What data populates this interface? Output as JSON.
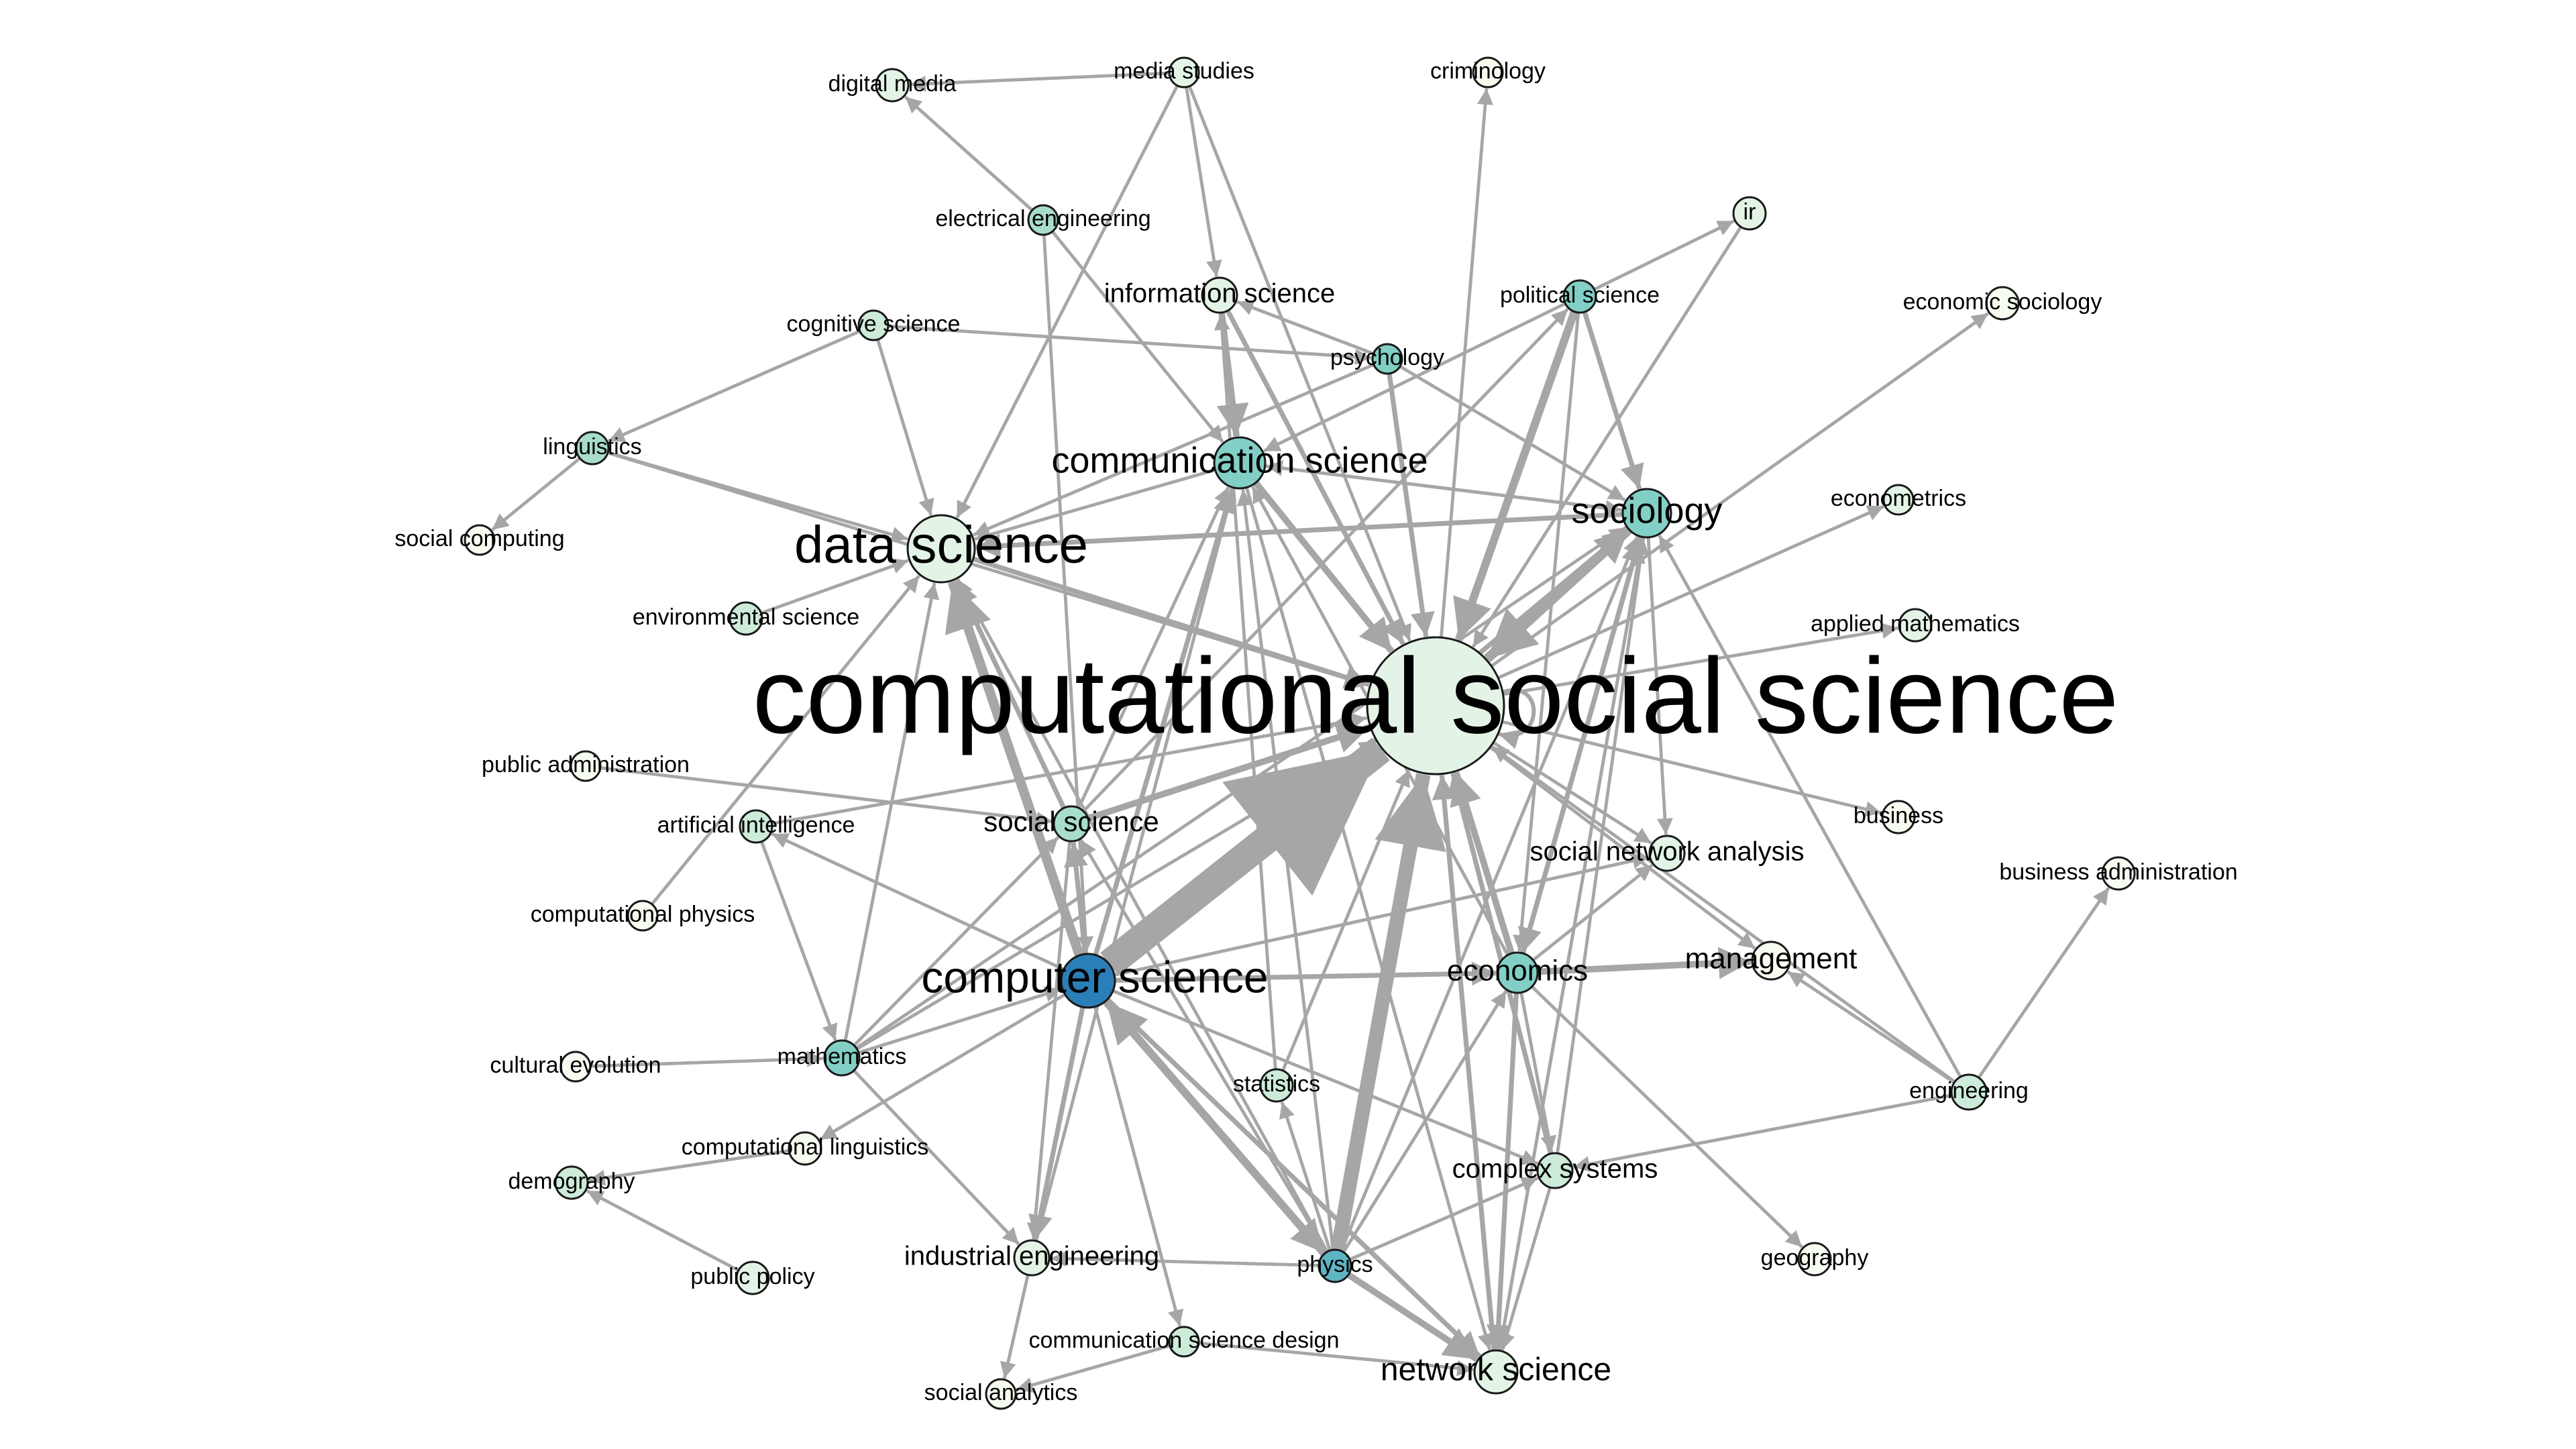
{
  "colors": {
    "edge": "#a6a6a6",
    "node_border": "#1a1a1a",
    "label": "#000000",
    "node_scale": [
      "#f7fcf0",
      "#e3f4e6",
      "#cdebd9",
      "#a8ddcd",
      "#82cfc5",
      "#5eb4c3",
      "#2b7fb8"
    ]
  },
  "nodes": [
    {
      "id": "css",
      "label": "computational social science",
      "level": 1
    },
    {
      "id": "cs",
      "label": "computer science",
      "level": 6
    },
    {
      "id": "ds",
      "label": "data science",
      "level": 1
    },
    {
      "id": "comm",
      "label": "communication science",
      "level": 4
    },
    {
      "id": "soc",
      "label": "sociology",
      "level": 4
    },
    {
      "id": "ss",
      "label": "social science",
      "level": 3
    },
    {
      "id": "econ",
      "label": "economics",
      "level": 4
    },
    {
      "id": "ns",
      "label": "network science",
      "level": 1
    },
    {
      "id": "mgmt",
      "label": "management",
      "level": 0
    },
    {
      "id": "sna",
      "label": "social network analysis",
      "level": 1
    },
    {
      "id": "cx",
      "label": "complex systems",
      "level": 2
    },
    {
      "id": "ie",
      "label": "industrial engineering",
      "level": 1
    },
    {
      "id": "info",
      "label": "information science",
      "level": 1
    },
    {
      "id": "phys",
      "label": "physics",
      "level": 5
    },
    {
      "id": "psy",
      "label": "psychology",
      "level": 4
    },
    {
      "id": "pol",
      "label": "political science",
      "level": 4
    },
    {
      "id": "dm",
      "label": "digital media",
      "level": 1
    },
    {
      "id": "ms",
      "label": "media studies",
      "level": 1
    },
    {
      "id": "crim",
      "label": "criminology",
      "level": 0
    },
    {
      "id": "ee",
      "label": "electrical engineering",
      "level": 3
    },
    {
      "id": "cog",
      "label": "cognitive science",
      "level": 2
    },
    {
      "id": "ling",
      "label": "linguistics",
      "level": 3
    },
    {
      "id": "scomp",
      "label": "social computing",
      "level": 0
    },
    {
      "id": "env",
      "label": "environmental science",
      "level": 2
    },
    {
      "id": "pa",
      "label": "public administration",
      "level": 0
    },
    {
      "id": "ai",
      "label": "artificial intelligence",
      "level": 2
    },
    {
      "id": "cphys",
      "label": "computational physics",
      "level": 0
    },
    {
      "id": "ce",
      "label": "cultural evolution",
      "level": 0
    },
    {
      "id": "math",
      "label": "mathematics",
      "level": 4
    },
    {
      "id": "cl",
      "label": "computational linguistics",
      "level": 0
    },
    {
      "id": "demo",
      "label": "demography",
      "level": 2
    },
    {
      "id": "pp",
      "label": "public policy",
      "level": 1
    },
    {
      "id": "stat",
      "label": "statistics",
      "level": 2
    },
    {
      "id": "csd",
      "label": "communication science design",
      "level": 2
    },
    {
      "id": "sa",
      "label": "social analytics",
      "level": 0
    },
    {
      "id": "ir",
      "label": "ir",
      "level": 1
    },
    {
      "id": "esoc",
      "label": "economic sociology",
      "level": 0
    },
    {
      "id": "ectr",
      "label": "econometrics",
      "level": 1
    },
    {
      "id": "am",
      "label": "applied mathematics",
      "level": 1
    },
    {
      "id": "bus",
      "label": "business",
      "level": 0
    },
    {
      "id": "ba",
      "label": "business administration",
      "level": 0
    },
    {
      "id": "eng",
      "label": "engineering",
      "level": 2
    },
    {
      "id": "geo",
      "label": "geography",
      "level": 0
    }
  ],
  "edges": [
    [
      "cs",
      "css",
      18
    ],
    [
      "phys",
      "css",
      9
    ],
    [
      "ss",
      "css",
      4
    ],
    [
      "comm",
      "css",
      4
    ],
    [
      "soc",
      "css",
      6
    ],
    [
      "pol",
      "css",
      5
    ],
    [
      "econ",
      "css",
      4
    ],
    [
      "psy",
      "css",
      3
    ],
    [
      "info",
      "css",
      3
    ],
    [
      "ds",
      "css",
      3
    ],
    [
      "ms",
      "css",
      2
    ],
    [
      "ns",
      "css",
      3
    ],
    [
      "ling",
      "css",
      2
    ],
    [
      "ai",
      "css",
      2
    ],
    [
      "ir",
      "css",
      2
    ],
    [
      "eng",
      "css",
      2
    ],
    [
      "math",
      "css",
      2
    ],
    [
      "cx",
      "css",
      3
    ],
    [
      "stat",
      "css",
      2
    ],
    [
      "css",
      "soc",
      4
    ],
    [
      "css",
      "sna",
      2
    ],
    [
      "css",
      "mgmt",
      2
    ],
    [
      "css",
      "bus",
      2
    ],
    [
      "css",
      "am",
      2
    ],
    [
      "css",
      "ectr",
      2
    ],
    [
      "css",
      "esoc",
      2
    ],
    [
      "css",
      "crim",
      2
    ],
    [
      "css",
      "cs",
      2
    ],
    [
      "cs",
      "ds",
      6
    ],
    [
      "ss",
      "ds",
      3
    ],
    [
      "math",
      "ds",
      2
    ],
    [
      "ling",
      "ds",
      2
    ],
    [
      "cog",
      "ds",
      2
    ],
    [
      "env",
      "ds",
      2
    ],
    [
      "cphys",
      "ds",
      2
    ],
    [
      "soc",
      "ds",
      3
    ],
    [
      "comm",
      "ds",
      2
    ],
    [
      "ms",
      "ds",
      2
    ],
    [
      "psy",
      "ds",
      2
    ],
    [
      "cs",
      "comm",
      3
    ],
    [
      "econ",
      "comm",
      2
    ],
    [
      "phys",
      "comm",
      2
    ],
    [
      "info",
      "comm",
      4
    ],
    [
      "ee",
      "comm",
      2
    ],
    [
      "pol",
      "comm",
      2
    ],
    [
      "soc",
      "comm",
      2
    ],
    [
      "ss",
      "comm",
      2
    ],
    [
      "ie",
      "comm",
      2
    ],
    [
      "cs",
      "soc",
      3
    ],
    [
      "phys",
      "soc",
      2
    ],
    [
      "econ",
      "soc",
      3
    ],
    [
      "pol",
      "soc",
      3
    ],
    [
      "psy",
      "soc",
      2
    ],
    [
      "ns",
      "soc",
      2
    ],
    [
      "comm",
      "soc",
      2
    ],
    [
      "cx",
      "soc",
      2
    ],
    [
      "math",
      "soc",
      2
    ],
    [
      "cs",
      "ss",
      3
    ],
    [
      "phys",
      "ss",
      2
    ],
    [
      "pa",
      "ss",
      2
    ],
    [
      "math",
      "ss",
      2
    ],
    [
      "cs",
      "econ",
      3
    ],
    [
      "econ",
      "mgmt",
      4
    ],
    [
      "eng",
      "mgmt",
      2
    ],
    [
      "cs",
      "sna",
      2
    ],
    [
      "econ",
      "sna",
      2
    ],
    [
      "econ",
      "ns",
      3
    ],
    [
      "phys",
      "ns",
      4
    ],
    [
      "cs",
      "ns",
      3
    ],
    [
      "csd",
      "ns",
      2
    ],
    [
      "cx",
      "ns",
      2
    ],
    [
      "soc",
      "ns",
      2
    ],
    [
      "comm",
      "ns",
      2
    ],
    [
      "phys",
      "cx",
      2
    ],
    [
      "cs",
      "cx",
      2
    ],
    [
      "econ",
      "cx",
      2
    ],
    [
      "eng",
      "cx",
      2
    ],
    [
      "cs",
      "ie",
      3
    ],
    [
      "math",
      "ie",
      2
    ],
    [
      "phys",
      "ie",
      2
    ],
    [
      "ss",
      "ie",
      2
    ],
    [
      "phys",
      "econ",
      2
    ],
    [
      "phys",
      "cs",
      5
    ],
    [
      "cs",
      "phys",
      4
    ],
    [
      "phys",
      "stat",
      2
    ],
    [
      "stat",
      "info",
      2
    ],
    [
      "cs",
      "ai",
      2
    ],
    [
      "math",
      "cs",
      2
    ],
    [
      "ce",
      "math",
      2
    ],
    [
      "ie",
      "sa",
      2
    ],
    [
      "csd",
      "sa",
      2
    ],
    [
      "cs",
      "csd",
      2
    ],
    [
      "cl",
      "demo",
      2
    ],
    [
      "pp",
      "demo",
      2
    ],
    [
      "cs",
      "cl",
      2
    ],
    [
      "ms",
      "dm",
      2
    ],
    [
      "ee",
      "dm",
      2
    ],
    [
      "ee",
      "cs",
      2
    ],
    [
      "cog",
      "ling",
      2
    ],
    [
      "ling",
      "scomp",
      2
    ],
    [
      "psy",
      "info",
      2
    ],
    [
      "pol",
      "ir",
      2
    ],
    [
      "eng",
      "ba",
      2
    ],
    [
      "econ",
      "geo",
      2
    ],
    [
      "eng",
      "soc",
      2
    ],
    [
      "ms",
      "info",
      2
    ],
    [
      "cog",
      "psy",
      2
    ],
    [
      "soc",
      "econ",
      3
    ],
    [
      "soc",
      "sna",
      2
    ],
    [
      "pol",
      "econ",
      2
    ],
    [
      "ss",
      "pol",
      2
    ],
    [
      "ai",
      "math",
      2
    ],
    [
      "phys",
      "ds",
      2
    ]
  ]
}
